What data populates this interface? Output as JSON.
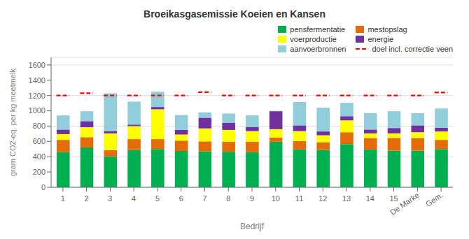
{
  "chart_data": {
    "type": "bar",
    "title": "Broeikasgasemissie Koeien en Kansen",
    "xlabel": "Bedrijf",
    "ylabel": "gram CO2-eq. per kg meetmelk",
    "categories": [
      "1",
      "2",
      "3",
      "4",
      "5",
      "6",
      "7",
      "8",
      "9",
      "10",
      "11",
      "12",
      "13",
      "14",
      "15",
      "De Marke",
      "Gem."
    ],
    "series": [
      {
        "name": "pensfermentatie",
        "color": "#00b050",
        "values": [
          460,
          520,
          405,
          490,
          500,
          475,
          470,
          465,
          460,
          595,
          495,
          490,
          565,
          495,
          480,
          480,
          500
        ]
      },
      {
        "name": "mestopslag",
        "color": "#e36c09",
        "values": [
          160,
          135,
          80,
          140,
          130,
          135,
          130,
          130,
          135,
          55,
          110,
          100,
          155,
          150,
          165,
          165,
          120
        ]
      },
      {
        "name": "voerproductie",
        "color": "#ffff00",
        "values": [
          75,
          130,
          220,
          170,
          390,
          80,
          170,
          155,
          140,
          110,
          130,
          90,
          155,
          60,
          60,
          75,
          110
        ]
      },
      {
        "name": "energie",
        "color": "#7030a0",
        "values": [
          60,
          80,
          30,
          20,
          30,
          60,
          140,
          95,
          55,
          235,
          75,
          50,
          55,
          50,
          70,
          90,
          50
        ]
      },
      {
        "name": "aanvoerbronnen",
        "color": "#92cddc",
        "values": [
          185,
          130,
          495,
          300,
          200,
          195,
          70,
          120,
          150,
          5,
          305,
          310,
          175,
          215,
          220,
          160,
          250
        ]
      },
      {
        "name": "doel incl. correctie veen",
        "type": "line",
        "line_style": "dashed",
        "color": "#ff0000",
        "values": [
          1200,
          1230,
          1200,
          1200,
          1200,
          1200,
          1245,
          1200,
          1200,
          1200,
          1200,
          1200,
          1200,
          1200,
          1200,
          1200,
          1240
        ]
      }
    ],
    "stacked": true,
    "ylim": [
      0,
      1700
    ],
    "yticks": [
      0,
      200,
      400,
      600,
      800,
      1000,
      1200,
      1400,
      1600
    ],
    "grid": true,
    "legend": "upper right"
  }
}
